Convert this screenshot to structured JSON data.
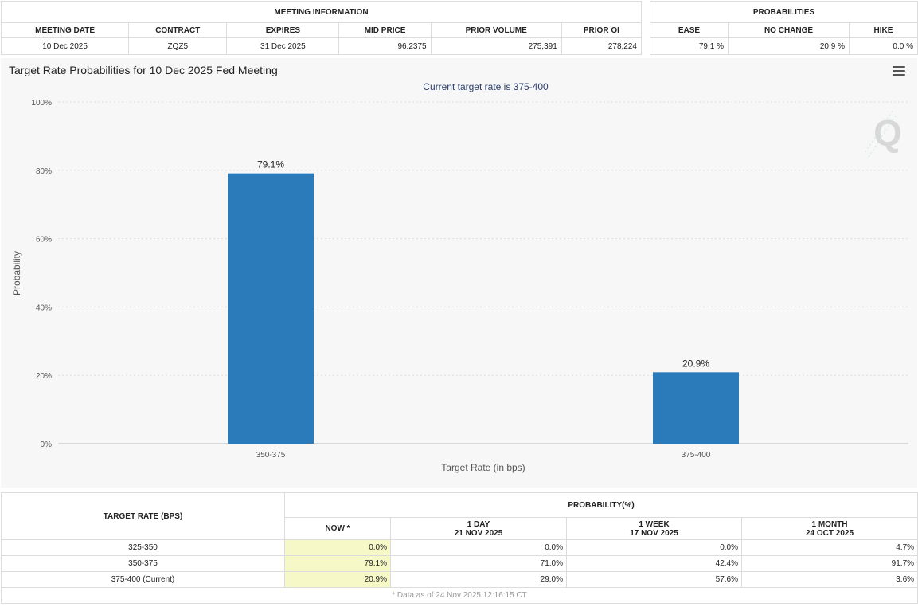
{
  "meeting_info": {
    "section_title": "MEETING INFORMATION",
    "headers": [
      "MEETING DATE",
      "CONTRACT",
      "EXPIRES",
      "MID PRICE",
      "PRIOR VOLUME",
      "PRIOR OI"
    ],
    "values": [
      "10 Dec 2025",
      "ZQZ5",
      "31 Dec 2025",
      "96.2375",
      "275,391",
      "278,224"
    ]
  },
  "probabilities": {
    "section_title": "PROBABILITIES",
    "headers": [
      "EASE",
      "NO CHANGE",
      "HIKE"
    ],
    "values": [
      "79.1 %",
      "20.9 %",
      "0.0 %"
    ]
  },
  "chart": {
    "menu_icon": "hamburger-menu-icon",
    "watermark_icon": "q-logo-icon",
    "watermark_text": "Q"
  },
  "chart_data": {
    "type": "bar",
    "title": "Target Rate Probabilities for 10 Dec 2025 Fed Meeting",
    "subtitle": "Current target rate is 375-400",
    "xlabel": "Target Rate (in bps)",
    "ylabel": "Probability",
    "categories": [
      "350-375",
      "375-400"
    ],
    "values": [
      79.1,
      20.9
    ],
    "data_labels": [
      "79.1%",
      "20.9%"
    ],
    "ylim": [
      0,
      100
    ],
    "yticks": [
      0,
      20,
      40,
      60,
      80,
      100
    ],
    "ytick_labels": [
      "0%",
      "20%",
      "40%",
      "60%",
      "80%",
      "100%"
    ],
    "grid": true,
    "bar_color": "#2b7bba"
  },
  "rate_table": {
    "target_rate_header": "TARGET RATE (BPS)",
    "probability_header": "PROBABILITY(%)",
    "columns": [
      {
        "line1": "NOW *",
        "line2": ""
      },
      {
        "line1": "1 DAY",
        "line2": "21 NOV 2025"
      },
      {
        "line1": "1 WEEK",
        "line2": "17 NOV 2025"
      },
      {
        "line1": "1 MONTH",
        "line2": "24 OCT 2025"
      }
    ],
    "rows": [
      {
        "rate": "325-350",
        "values": [
          "0.0%",
          "0.0%",
          "0.0%",
          "4.7%"
        ]
      },
      {
        "rate": "350-375",
        "values": [
          "79.1%",
          "71.0%",
          "42.4%",
          "91.7%"
        ]
      },
      {
        "rate": "375-400 (Current)",
        "values": [
          "20.9%",
          "29.0%",
          "57.6%",
          "3.6%"
        ]
      }
    ],
    "footnote": "* Data as of 24 Nov 2025 12:16:15 CT",
    "now_highlight_color": "#f6f8c7"
  }
}
